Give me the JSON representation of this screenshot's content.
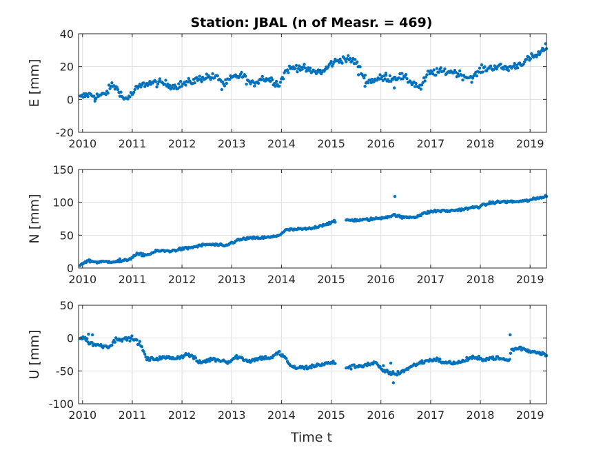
{
  "chart_data": {
    "title": "Station: JBAL (n of Measr. = 469)",
    "xlabel": "Time t",
    "color": "#0072BD",
    "grid": true,
    "panels": [
      {
        "type": "scatter",
        "ylabel": "E [mm]",
        "ylim": [
          -20,
          40
        ],
        "yticks": [
          -20,
          0,
          20,
          40
        ],
        "xlim": [
          2009.92,
          2019.33
        ],
        "xticks": [
          2010,
          2011,
          2012,
          2013,
          2014,
          2015,
          2016,
          2017,
          2018,
          2019
        ],
        "anchors": [
          [
            2009.95,
            1
          ],
          [
            2010.1,
            3
          ],
          [
            2010.3,
            2
          ],
          [
            2010.45,
            3
          ],
          [
            2010.6,
            9
          ],
          [
            2010.75,
            5
          ],
          [
            2010.82,
            0
          ],
          [
            2010.95,
            2
          ],
          [
            2011.1,
            7
          ],
          [
            2011.3,
            10
          ],
          [
            2011.6,
            10
          ],
          [
            2011.85,
            8
          ],
          [
            2012.1,
            10
          ],
          [
            2012.3,
            12
          ],
          [
            2012.5,
            14
          ],
          [
            2012.75,
            13
          ],
          [
            2012.85,
            9
          ],
          [
            2013.0,
            13
          ],
          [
            2013.2,
            15
          ],
          [
            2013.4,
            9
          ],
          [
            2013.6,
            13
          ],
          [
            2013.8,
            12
          ],
          [
            2013.95,
            9
          ],
          [
            2014.1,
            18
          ],
          [
            2014.35,
            20
          ],
          [
            2014.6,
            17
          ],
          [
            2014.85,
            17
          ],
          [
            2015.0,
            22
          ],
          [
            2015.25,
            25
          ],
          [
            2015.5,
            23
          ],
          [
            2015.65,
            14
          ],
          [
            2015.75,
            11
          ],
          [
            2016.0,
            13
          ],
          [
            2016.2,
            13
          ],
          [
            2016.4,
            14
          ],
          [
            2016.6,
            11
          ],
          [
            2016.8,
            7
          ],
          [
            2016.95,
            16
          ],
          [
            2017.2,
            17
          ],
          [
            2017.45,
            17
          ],
          [
            2017.7,
            14
          ],
          [
            2017.85,
            13
          ],
          [
            2018.0,
            18
          ],
          [
            2018.3,
            20
          ],
          [
            2018.55,
            19
          ],
          [
            2018.75,
            21
          ],
          [
            2019.0,
            25
          ],
          [
            2019.2,
            28
          ],
          [
            2019.33,
            32
          ]
        ],
        "noise": 1.6,
        "outliers": [
          [
            2010.25,
            -1
          ],
          [
            2011.0,
            3
          ],
          [
            2012.8,
            6
          ],
          [
            2015.55,
            15
          ],
          [
            2015.68,
            8
          ],
          [
            2016.27,
            7
          ],
          [
            2016.1,
            16
          ]
        ]
      },
      {
        "type": "scatter",
        "ylabel": "N [mm]",
        "ylim": [
          0,
          150
        ],
        "yticks": [
          0,
          50,
          100,
          150
        ],
        "xlim": [
          2009.92,
          2019.33
        ],
        "xticks": [
          2010,
          2011,
          2012,
          2013,
          2014,
          2015,
          2016,
          2017,
          2018,
          2019
        ],
        "gaps": [
          [
            2015.1,
            2015.3
          ]
        ],
        "anchors": [
          [
            2009.95,
            5
          ],
          [
            2010.1,
            11
          ],
          [
            2010.3,
            9
          ],
          [
            2010.6,
            10
          ],
          [
            2010.8,
            10
          ],
          [
            2010.95,
            14
          ],
          [
            2011.1,
            21
          ],
          [
            2011.3,
            20
          ],
          [
            2011.5,
            26
          ],
          [
            2011.8,
            26
          ],
          [
            2011.9,
            28
          ],
          [
            2012.1,
            30
          ],
          [
            2012.3,
            33
          ],
          [
            2012.5,
            36
          ],
          [
            2012.75,
            35
          ],
          [
            2012.85,
            33
          ],
          [
            2013.1,
            42
          ],
          [
            2013.3,
            45
          ],
          [
            2013.6,
            46
          ],
          [
            2013.8,
            47
          ],
          [
            2013.95,
            50
          ],
          [
            2014.1,
            58
          ],
          [
            2014.35,
            59
          ],
          [
            2014.6,
            60
          ],
          [
            2014.8,
            65
          ],
          [
            2015.05,
            70
          ],
          [
            2015.3,
            73
          ],
          [
            2015.6,
            73
          ],
          [
            2015.9,
            75
          ],
          [
            2016.2,
            79
          ],
          [
            2016.3,
            81
          ],
          [
            2016.4,
            77
          ],
          [
            2016.7,
            78
          ],
          [
            2016.9,
            84
          ],
          [
            2017.1,
            87
          ],
          [
            2017.4,
            87
          ],
          [
            2017.7,
            90
          ],
          [
            2018.0,
            94
          ],
          [
            2018.2,
            99
          ],
          [
            2018.45,
            101
          ],
          [
            2018.7,
            101
          ],
          [
            2018.9,
            102
          ],
          [
            2019.1,
            105
          ],
          [
            2019.33,
            110
          ]
        ],
        "noise": 1.4,
        "outliers": [
          [
            2016.28,
            109
          ],
          [
            2010.75,
            14
          ],
          [
            2010.15,
            12
          ]
        ]
      },
      {
        "type": "scatter",
        "ylabel": "U [mm]",
        "ylim": [
          -100,
          50
        ],
        "yticks": [
          -100,
          -50,
          0,
          50
        ],
        "xlim": [
          2009.92,
          2019.33
        ],
        "xticks": [
          2010,
          2011,
          2012,
          2013,
          2014,
          2015,
          2016,
          2017,
          2018,
          2019
        ],
        "gaps": [
          [
            2015.1,
            2015.3
          ]
        ],
        "anchors": [
          [
            2009.95,
            0
          ],
          [
            2010.05,
            0
          ],
          [
            2010.15,
            -8
          ],
          [
            2010.4,
            -12
          ],
          [
            2010.55,
            -12
          ],
          [
            2010.7,
            0
          ],
          [
            2010.85,
            -2
          ],
          [
            2011.0,
            0
          ],
          [
            2011.15,
            -8
          ],
          [
            2011.3,
            -33
          ],
          [
            2011.6,
            -30
          ],
          [
            2011.9,
            -30
          ],
          [
            2012.1,
            -25
          ],
          [
            2012.2,
            -27
          ],
          [
            2012.35,
            -38
          ],
          [
            2012.6,
            -32
          ],
          [
            2012.8,
            -34
          ],
          [
            2012.95,
            -36
          ],
          [
            2013.1,
            -28
          ],
          [
            2013.35,
            -35
          ],
          [
            2013.6,
            -30
          ],
          [
            2013.8,
            -30
          ],
          [
            2013.95,
            -22
          ],
          [
            2014.1,
            -32
          ],
          [
            2014.2,
            -45
          ],
          [
            2014.5,
            -45
          ],
          [
            2014.8,
            -40
          ],
          [
            2015.1,
            -37
          ],
          [
            2015.3,
            -45
          ],
          [
            2015.6,
            -42
          ],
          [
            2015.9,
            -38
          ],
          [
            2016.0,
            -48
          ],
          [
            2016.15,
            -52
          ],
          [
            2016.3,
            -55
          ],
          [
            2016.5,
            -48
          ],
          [
            2016.7,
            -40
          ],
          [
            2016.9,
            -35
          ],
          [
            2017.1,
            -32
          ],
          [
            2017.3,
            -38
          ],
          [
            2017.6,
            -37
          ],
          [
            2017.8,
            -30
          ],
          [
            2018.0,
            -32
          ],
          [
            2018.3,
            -30
          ],
          [
            2018.5,
            -33
          ],
          [
            2018.58,
            -35
          ],
          [
            2018.62,
            -18
          ],
          [
            2018.8,
            -15
          ],
          [
            2019.0,
            -20
          ],
          [
            2019.2,
            -22
          ],
          [
            2019.33,
            -25
          ]
        ],
        "noise": 2.2,
        "outliers": [
          [
            2016.25,
            -68
          ],
          [
            2018.6,
            5
          ],
          [
            2010.12,
            6
          ],
          [
            2010.2,
            5
          ],
          [
            2016.05,
            -42
          ],
          [
            2016.2,
            -38
          ]
        ]
      }
    ]
  }
}
